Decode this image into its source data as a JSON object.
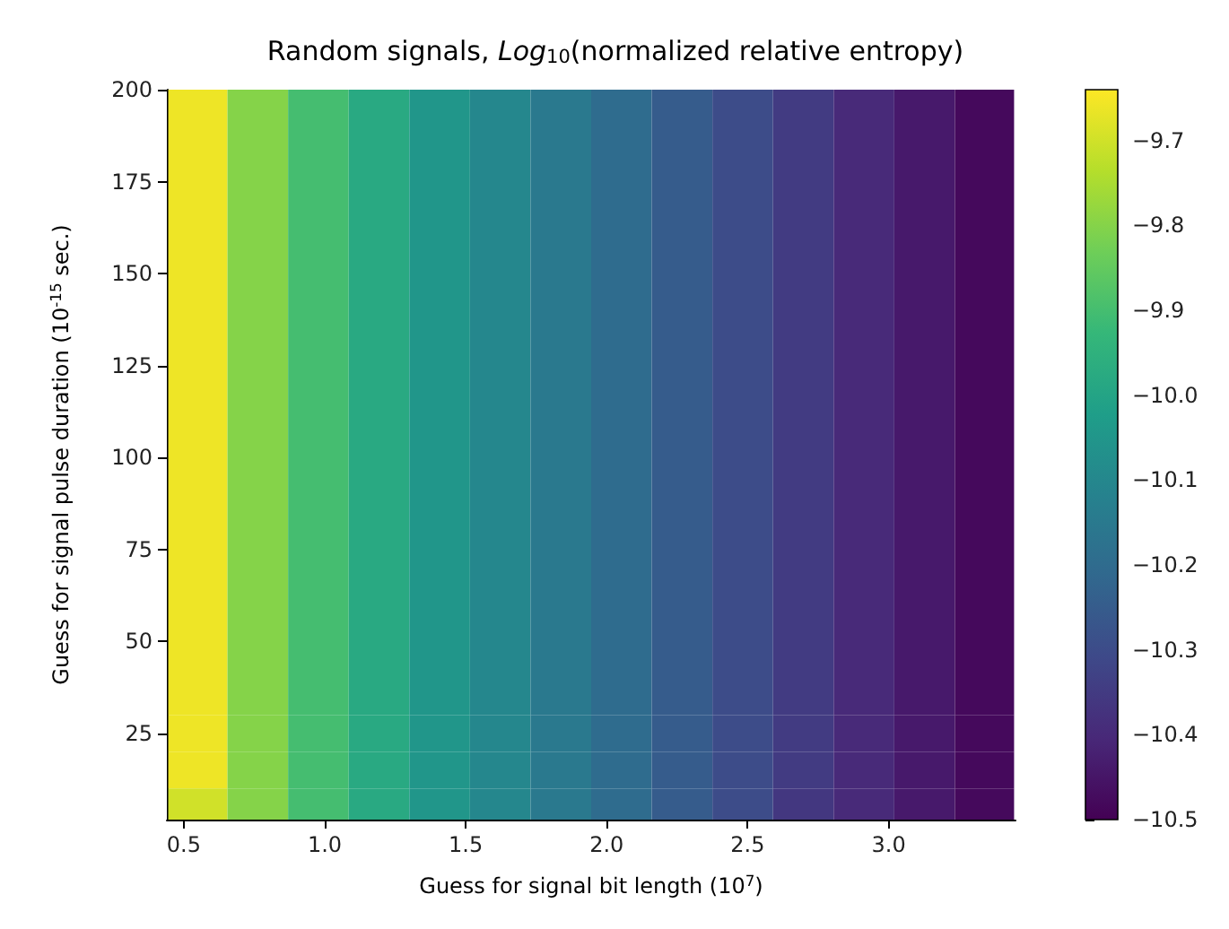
{
  "chart_data": {
    "type": "heatmap",
    "title": "Random signals, Log$_{10}$(normalized relative entropy)",
    "xlabel": "Guess for signal bit length (10$^{7}$)",
    "ylabel": "Guess for signal pulse duration (10$^{-15}$ sec.)",
    "x": [
      0.55,
      0.76,
      0.98,
      1.19,
      1.41,
      1.62,
      1.84,
      2.05,
      2.27,
      2.48,
      2.7,
      2.91,
      3.13,
      3.34
    ],
    "y": [
      195,
      185,
      175,
      165,
      155,
      145,
      135,
      125,
      115,
      105,
      95,
      85,
      75,
      65,
      55,
      45,
      35,
      25,
      15,
      5
    ],
    "cells": [
      [
        -9.66,
        -9.8,
        -9.9,
        -9.98,
        -10.05,
        -10.1,
        -10.15,
        -10.2,
        -10.25,
        -10.3,
        -10.35,
        -10.4,
        -10.44,
        -10.48
      ],
      [
        -9.66,
        -9.8,
        -9.9,
        -9.98,
        -10.05,
        -10.1,
        -10.15,
        -10.2,
        -10.25,
        -10.3,
        -10.35,
        -10.4,
        -10.44,
        -10.48
      ],
      [
        -9.66,
        -9.8,
        -9.9,
        -9.98,
        -10.05,
        -10.1,
        -10.15,
        -10.2,
        -10.25,
        -10.3,
        -10.35,
        -10.4,
        -10.44,
        -10.48
      ],
      [
        -9.66,
        -9.8,
        -9.9,
        -9.98,
        -10.05,
        -10.1,
        -10.15,
        -10.2,
        -10.25,
        -10.3,
        -10.35,
        -10.4,
        -10.44,
        -10.48
      ],
      [
        -9.66,
        -9.8,
        -9.9,
        -9.98,
        -10.05,
        -10.1,
        -10.15,
        -10.2,
        -10.25,
        -10.3,
        -10.35,
        -10.4,
        -10.44,
        -10.48
      ],
      [
        -9.66,
        -9.8,
        -9.9,
        -9.98,
        -10.05,
        -10.1,
        -10.15,
        -10.2,
        -10.25,
        -10.3,
        -10.35,
        -10.4,
        -10.44,
        -10.48
      ],
      [
        -9.66,
        -9.8,
        -9.9,
        -9.98,
        -10.05,
        -10.1,
        -10.15,
        -10.2,
        -10.25,
        -10.3,
        -10.35,
        -10.4,
        -10.44,
        -10.48
      ],
      [
        -9.66,
        -9.8,
        -9.9,
        -9.98,
        -10.05,
        -10.1,
        -10.15,
        -10.2,
        -10.25,
        -10.3,
        -10.35,
        -10.4,
        -10.44,
        -10.48
      ],
      [
        -9.66,
        -9.8,
        -9.9,
        -9.98,
        -10.05,
        -10.1,
        -10.15,
        -10.2,
        -10.25,
        -10.3,
        -10.35,
        -10.4,
        -10.44,
        -10.48
      ],
      [
        -9.66,
        -9.8,
        -9.9,
        -9.98,
        -10.05,
        -10.1,
        -10.15,
        -10.2,
        -10.25,
        -10.3,
        -10.35,
        -10.4,
        -10.44,
        -10.48
      ],
      [
        -9.66,
        -9.8,
        -9.9,
        -9.98,
        -10.05,
        -10.1,
        -10.15,
        -10.2,
        -10.25,
        -10.3,
        -10.35,
        -10.4,
        -10.44,
        -10.48
      ],
      [
        -9.66,
        -9.8,
        -9.9,
        -9.98,
        -10.05,
        -10.1,
        -10.15,
        -10.2,
        -10.25,
        -10.3,
        -10.35,
        -10.4,
        -10.44,
        -10.48
      ],
      [
        -9.66,
        -9.8,
        -9.9,
        -9.98,
        -10.05,
        -10.1,
        -10.15,
        -10.2,
        -10.25,
        -10.3,
        -10.35,
        -10.4,
        -10.44,
        -10.48
      ],
      [
        -9.66,
        -9.8,
        -9.9,
        -9.98,
        -10.05,
        -10.1,
        -10.15,
        -10.2,
        -10.25,
        -10.3,
        -10.35,
        -10.4,
        -10.44,
        -10.48
      ],
      [
        -9.66,
        -9.8,
        -9.9,
        -9.98,
        -10.05,
        -10.1,
        -10.15,
        -10.2,
        -10.25,
        -10.3,
        -10.35,
        -10.4,
        -10.44,
        -10.48
      ],
      [
        -9.66,
        -9.8,
        -9.9,
        -9.98,
        -10.05,
        -10.1,
        -10.15,
        -10.2,
        -10.25,
        -10.3,
        -10.35,
        -10.4,
        -10.44,
        -10.48
      ],
      [
        -9.66,
        -9.8,
        -9.9,
        -9.98,
        -10.05,
        -10.1,
        -10.15,
        -10.2,
        -10.25,
        -10.3,
        -10.35,
        -10.4,
        -10.44,
        -10.48
      ],
      [
        -9.66,
        -9.8,
        -9.9,
        -9.98,
        -10.05,
        -10.1,
        -10.15,
        -10.2,
        -10.25,
        -10.3,
        -10.35,
        -10.4,
        -10.44,
        -10.48
      ],
      [
        -9.66,
        -9.8,
        -9.9,
        -9.98,
        -10.05,
        -10.1,
        -10.15,
        -10.2,
        -10.25,
        -10.3,
        -10.35,
        -10.4,
        -10.44,
        -10.48
      ],
      [
        -9.7,
        -9.8,
        -9.9,
        -9.98,
        -10.05,
        -10.1,
        -10.15,
        -10.2,
        -10.25,
        -10.3,
        -10.36,
        -10.4,
        -10.44,
        -10.48
      ]
    ],
    "xlim": [
      0.44,
      3.45
    ],
    "xticks": [
      {
        "value": 0.5,
        "label": "0.5"
      },
      {
        "value": 1,
        "label": "1.0"
      },
      {
        "value": 1.5,
        "label": "1.5"
      },
      {
        "value": 2,
        "label": "2.0"
      },
      {
        "value": 2.5,
        "label": "2.5"
      },
      {
        "value": 3,
        "label": "3.0"
      }
    ],
    "ylim": [
      1.5,
      200
    ],
    "yticks": [
      25,
      50,
      75,
      100,
      125,
      150,
      175,
      200
    ],
    "clim": [
      -10.5,
      -9.64
    ],
    "cticks": [
      -10.5,
      -10.4,
      -10.3,
      -10.2,
      -10.1,
      {
        "value": -10,
        "label": "−10.0"
      },
      -9.9,
      -9.8,
      -9.7
    ]
  }
}
